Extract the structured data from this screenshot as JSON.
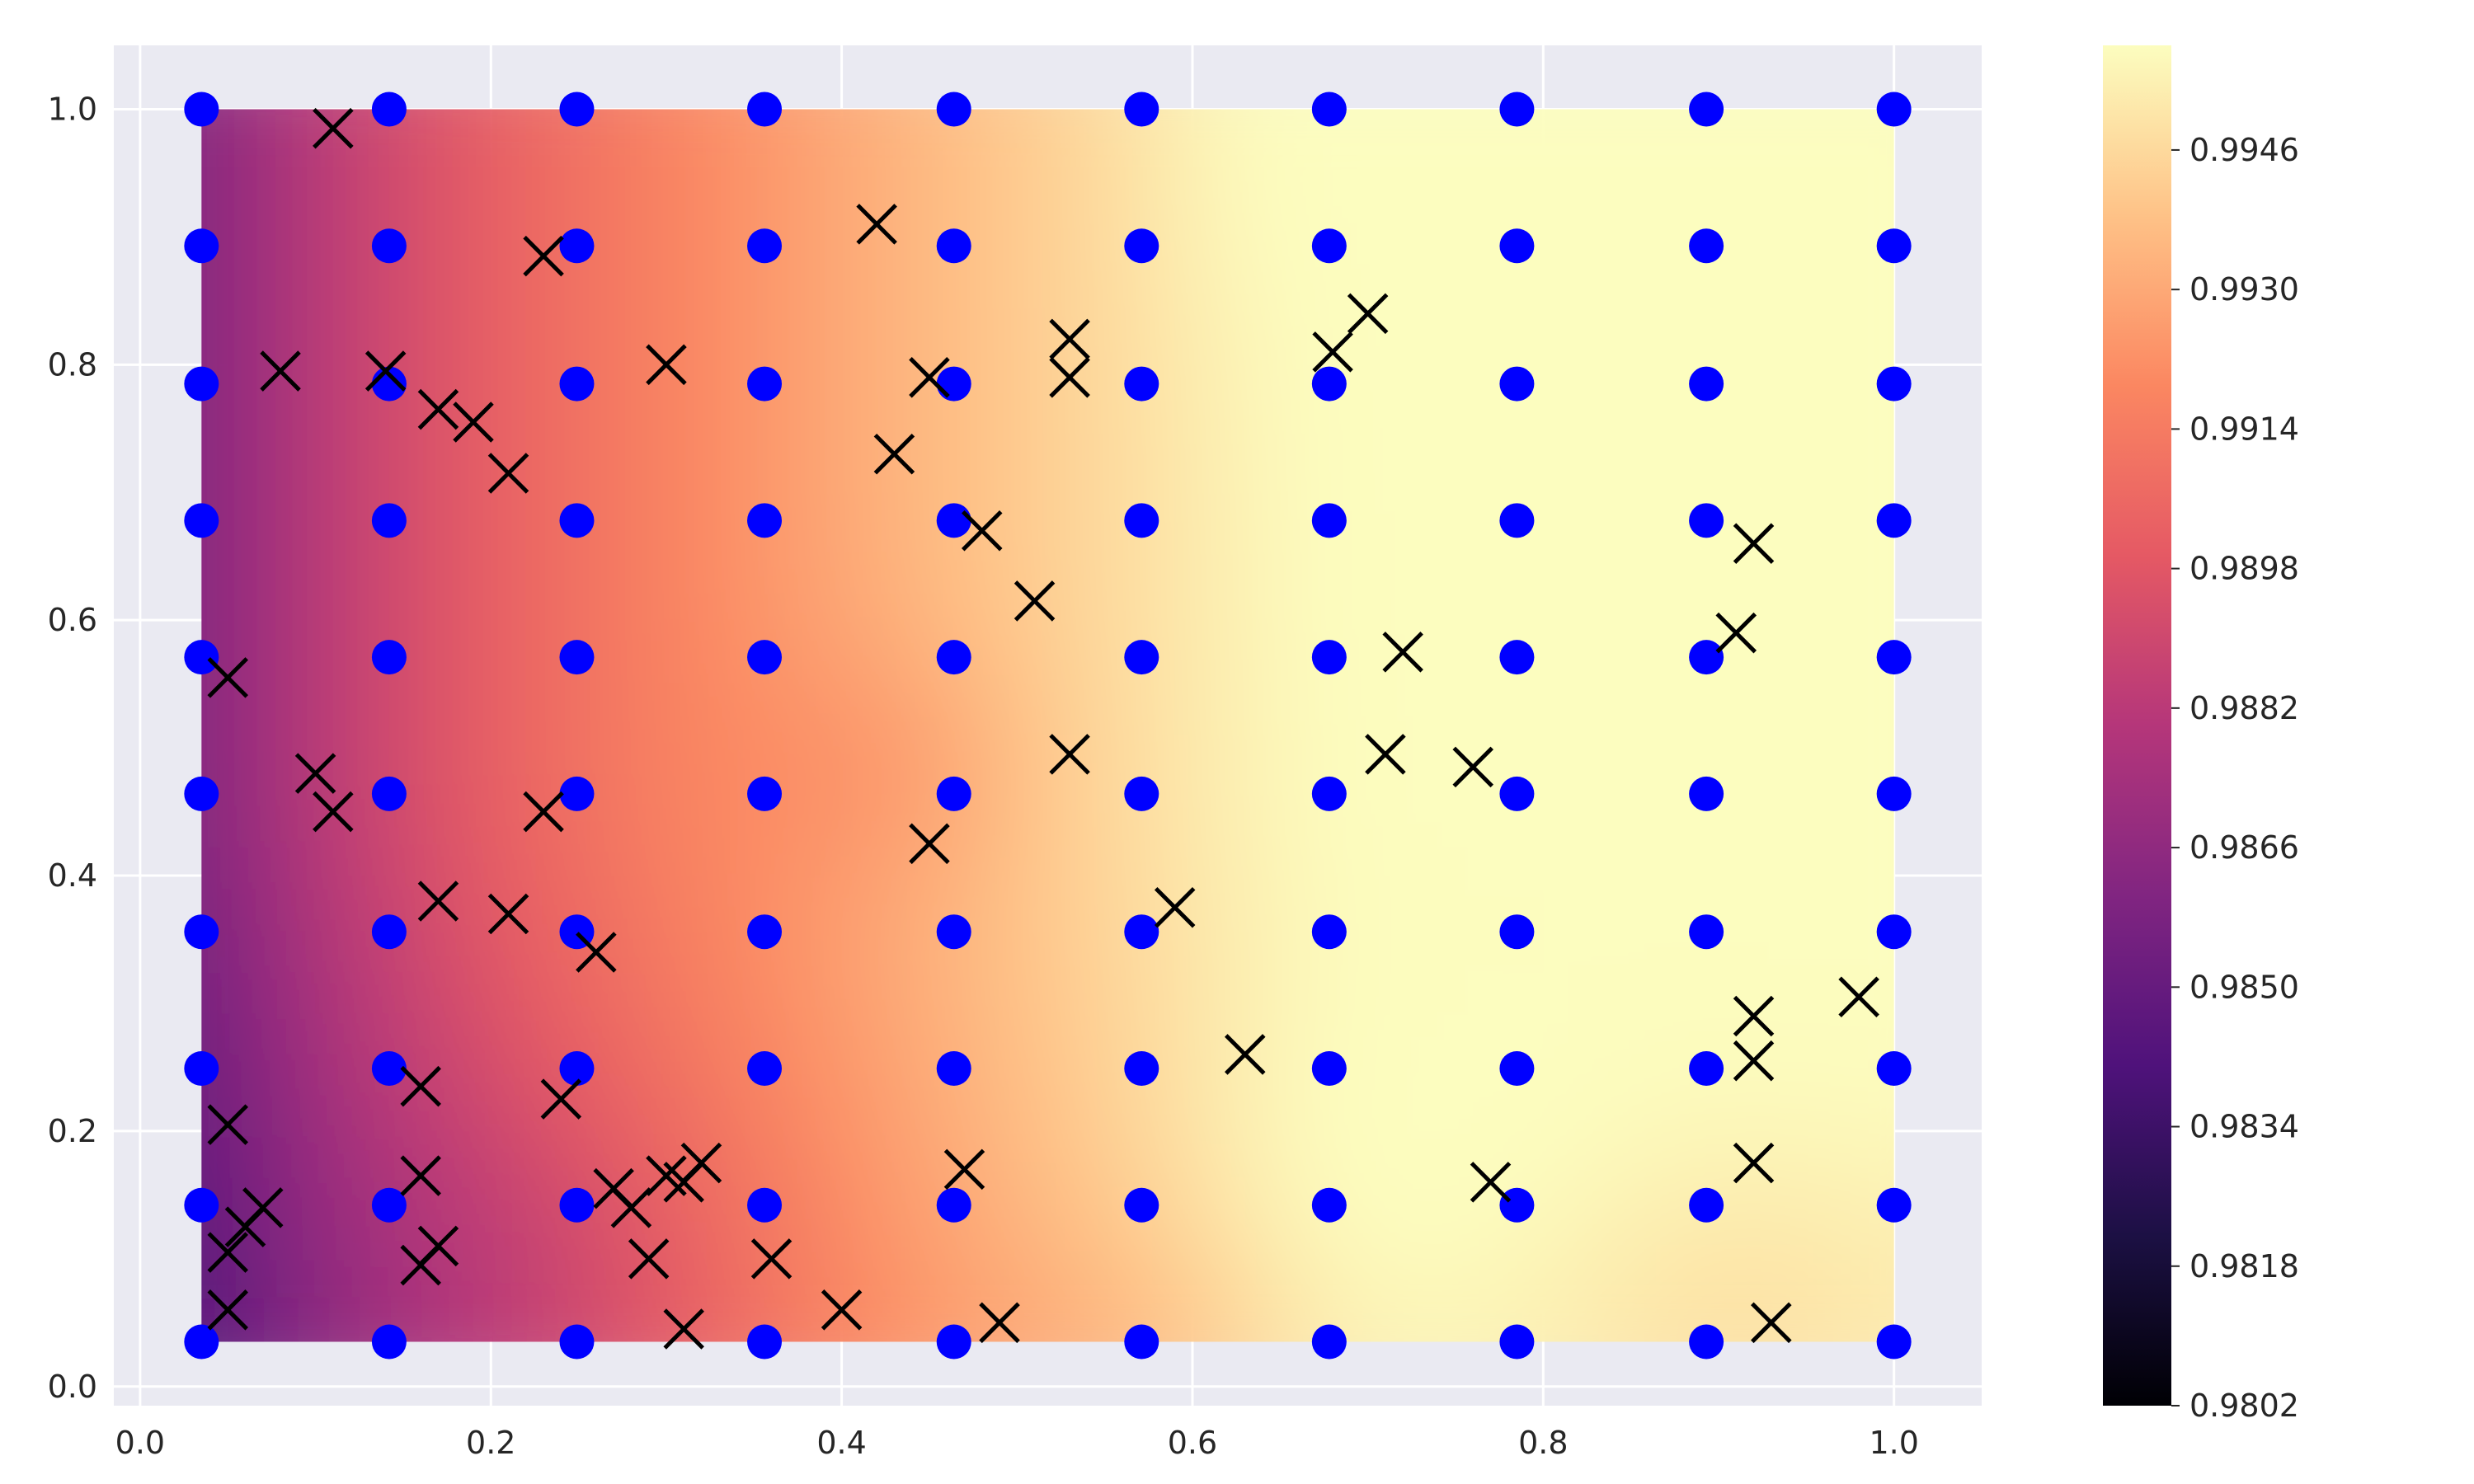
{
  "chart_data": {
    "type": "heatmap",
    "title": "",
    "xlabel": "",
    "ylabel": "",
    "xlim": [
      -0.015,
      1.05
    ],
    "ylim": [
      -0.015,
      1.05
    ],
    "grid": true,
    "x_ticks": [
      0.0,
      0.2,
      0.4,
      0.6,
      0.8,
      1.0
    ],
    "x_tick_labels": [
      "0.0",
      "0.2",
      "0.4",
      "0.6",
      "0.8",
      "1.0"
    ],
    "y_ticks": [
      0.0,
      0.2,
      0.4,
      0.6,
      0.8,
      1.0
    ],
    "y_tick_labels": [
      "0.0",
      "0.2",
      "0.4",
      "0.6",
      "0.8",
      "1.0"
    ],
    "colormap": "magma",
    "colorbar": {
      "range": [
        0.9802,
        0.9958
      ],
      "ticks": [
        0.9802,
        0.9818,
        0.9834,
        0.985,
        0.9866,
        0.9882,
        0.9898,
        0.9914,
        0.993,
        0.9946
      ],
      "tick_labels": [
        "0.9802",
        "0.9818",
        "0.9834",
        "0.9850",
        "0.9866",
        "0.9882",
        "0.9898",
        "0.9914",
        "0.9930",
        "0.9946"
      ]
    },
    "surface_extent": {
      "x": [
        0.035,
        1.0
      ],
      "y": [
        0.035,
        1.0
      ]
    },
    "grid_points": {
      "marker": "circle",
      "color": "#0000ff",
      "x": [
        0.035,
        0.142,
        0.249,
        0.356,
        0.464,
        0.571,
        0.678,
        0.785,
        0.893,
        1.0
      ],
      "y": [
        0.035,
        0.142,
        0.249,
        0.356,
        0.464,
        0.571,
        0.678,
        0.785,
        0.893,
        1.0
      ]
    },
    "samples": {
      "marker": "x",
      "color": "#000000",
      "points": [
        [
          0.11,
          0.985
        ],
        [
          0.23,
          0.885
        ],
        [
          0.42,
          0.91
        ],
        [
          0.53,
          0.82
        ],
        [
          0.7,
          0.84
        ],
        [
          0.08,
          0.795
        ],
        [
          0.14,
          0.795
        ],
        [
          0.17,
          0.765
        ],
        [
          0.19,
          0.755
        ],
        [
          0.3,
          0.8
        ],
        [
          0.45,
          0.79
        ],
        [
          0.53,
          0.79
        ],
        [
          0.68,
          0.81
        ],
        [
          0.21,
          0.715
        ],
        [
          0.43,
          0.73
        ],
        [
          0.48,
          0.67
        ],
        [
          0.92,
          0.66
        ],
        [
          0.51,
          0.615
        ],
        [
          0.91,
          0.59
        ],
        [
          0.72,
          0.575
        ],
        [
          0.05,
          0.555
        ],
        [
          0.1,
          0.48
        ],
        [
          0.53,
          0.495
        ],
        [
          0.71,
          0.495
        ],
        [
          0.76,
          0.485
        ],
        [
          0.11,
          0.45
        ],
        [
          0.23,
          0.45
        ],
        [
          0.45,
          0.425
        ],
        [
          0.17,
          0.38
        ],
        [
          0.21,
          0.37
        ],
        [
          0.59,
          0.375
        ],
        [
          0.26,
          0.34
        ],
        [
          0.98,
          0.305
        ],
        [
          0.92,
          0.29
        ],
        [
          0.63,
          0.26
        ],
        [
          0.92,
          0.255
        ],
        [
          0.16,
          0.235
        ],
        [
          0.24,
          0.225
        ],
        [
          0.05,
          0.205
        ],
        [
          0.92,
          0.175
        ],
        [
          0.16,
          0.165
        ],
        [
          0.32,
          0.175
        ],
        [
          0.3,
          0.165
        ],
        [
          0.31,
          0.16
        ],
        [
          0.47,
          0.17
        ],
        [
          0.77,
          0.16
        ],
        [
          0.27,
          0.155
        ],
        [
          0.28,
          0.14
        ],
        [
          0.07,
          0.14
        ],
        [
          0.06,
          0.125
        ],
        [
          0.17,
          0.11
        ],
        [
          0.16,
          0.095
        ],
        [
          0.05,
          0.105
        ],
        [
          0.29,
          0.1
        ],
        [
          0.36,
          0.1
        ],
        [
          0.05,
          0.06
        ],
        [
          0.4,
          0.06
        ],
        [
          0.31,
          0.045
        ],
        [
          0.49,
          0.05
        ],
        [
          0.93,
          0.05
        ]
      ]
    }
  }
}
